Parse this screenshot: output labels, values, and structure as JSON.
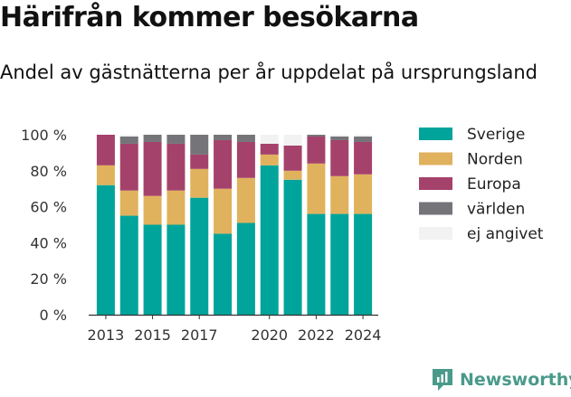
{
  "title": "Härifrån kommer besökarna",
  "subtitle": "Andel av gästnätterna per år uppdelat på ursprungsland",
  "brand": {
    "name": "Newsworthy"
  },
  "chart_data": {
    "type": "bar",
    "stacked": true,
    "categories": [
      "2013",
      "2014",
      "2015",
      "2016",
      "2017",
      "2018",
      "2019",
      "2020",
      "2021",
      "2022",
      "2023",
      "2024"
    ],
    "x_tick_labels": [
      "2013",
      "2015",
      "2017",
      "2020",
      "2022",
      "2024"
    ],
    "y_ticks": [
      "0 %",
      "20 %",
      "40 %",
      "60 %",
      "80 %",
      "100 %"
    ],
    "ylim": [
      0,
      100
    ],
    "legend_position": "right",
    "grid": false,
    "series": [
      {
        "name": "Sverige",
        "color": "#00a49a",
        "values": [
          72,
          55,
          50,
          50,
          65,
          45,
          51,
          83,
          75,
          56,
          56,
          56
        ]
      },
      {
        "name": "Norden",
        "color": "#e0b25d",
        "values": [
          11,
          14,
          16,
          19,
          16,
          25,
          25,
          6,
          5,
          28,
          21,
          22
        ]
      },
      {
        "name": "Europa",
        "color": "#a5426b",
        "values": [
          17,
          26,
          30,
          26,
          8,
          27,
          20,
          6,
          14,
          15,
          20,
          18
        ]
      },
      {
        "name": "världen",
        "color": "#747479",
        "values": [
          0,
          4,
          4,
          5,
          11,
          3,
          4,
          0,
          0,
          1,
          2,
          3
        ]
      },
      {
        "name": "ej angivet",
        "color": "#f2f2f2",
        "values": [
          0,
          1,
          0,
          0,
          0,
          0,
          0,
          5,
          6,
          0,
          1,
          1
        ]
      }
    ]
  }
}
